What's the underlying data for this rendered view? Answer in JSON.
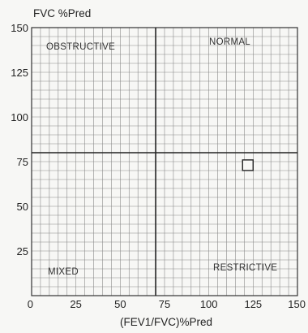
{
  "chart_data": {
    "type": "scatter",
    "title": "",
    "ylabel": "FVC %Pred",
    "xlabel": "(FEV1/FVC)%Pred",
    "xlim": [
      0,
      150
    ],
    "ylim": [
      0,
      150
    ],
    "x_ticks": [
      "0",
      "25",
      "50",
      "75",
      "100",
      "125",
      "150"
    ],
    "y_ticks": [
      "25",
      "50",
      "75",
      "100",
      "125",
      "150"
    ],
    "grid": true,
    "grid_step": 5,
    "reference_lines": {
      "x": 70,
      "y": 80
    },
    "quadrant_labels": {
      "top_left": "OBSTRUCTIVE",
      "top_right": "NORMAL",
      "bottom_left": "MIXED",
      "bottom_right": "RESTRICTIVE"
    },
    "series": [
      {
        "marker": "square",
        "points": [
          {
            "x": 122,
            "y": 73
          }
        ]
      }
    ]
  }
}
